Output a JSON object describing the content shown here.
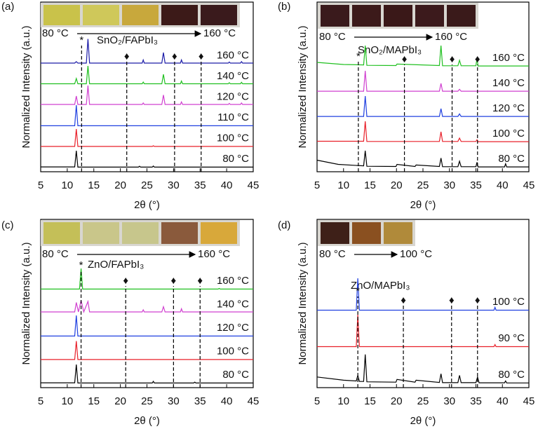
{
  "chart_data": [
    {
      "type": "line",
      "panel_label": "(a)",
      "title": "SnO₂/FAPbI₃",
      "photo_labels": [
        "80 °C",
        "160 °C"
      ],
      "sample_colors": [
        "#c9c24a",
        "#cfc85a",
        "#c8a83c",
        "#3c1a18",
        "#3a1a1c"
      ],
      "xlabel": "2θ (°)",
      "ylabel": "Normalized Intensity (a.u.)",
      "xlim": [
        5,
        45
      ],
      "xticks": [
        5,
        10,
        15,
        20,
        25,
        30,
        35,
        40,
        45
      ],
      "reference_lines": [
        {
          "x": 12.7,
          "marker": "*"
        },
        {
          "x": 21.2,
          "marker": "♦"
        },
        {
          "x": 30.2,
          "marker": "♦"
        },
        {
          "x": 35.2,
          "marker": "♦"
        }
      ],
      "series": [
        {
          "name": "80 °C",
          "color": "#000000",
          "x": [
            5,
            11.4,
            11.7,
            12.0,
            23.4,
            23.6,
            23.8,
            26.0,
            26.2,
            26.4,
            45
          ],
          "values": [
            0.03,
            0.03,
            0.8,
            0.02,
            0.02,
            0.06,
            0.02,
            0.02,
            0.07,
            0.02,
            0.02
          ]
        },
        {
          "name": "100 °C",
          "color": "#e8202a",
          "x": [
            5,
            11.4,
            11.7,
            12.0,
            26.0,
            26.2,
            26.4,
            45
          ],
          "values": [
            0.02,
            0.02,
            0.85,
            0.02,
            0.02,
            0.05,
            0.02,
            0.02
          ]
        },
        {
          "name": "110 °C",
          "color": "#2040e0",
          "x": [
            5,
            11.4,
            11.7,
            12.0,
            45
          ],
          "values": [
            0.02,
            0.02,
            1.0,
            0.02,
            0.02
          ]
        },
        {
          "name": "120 °C",
          "color": "#d040d0",
          "x": [
            5,
            11.4,
            11.7,
            12.0,
            13.6,
            13.9,
            14.2,
            24.1,
            24.3,
            24.5,
            27.8,
            28.1,
            28.4,
            31.3,
            31.5,
            31.7,
            40.3,
            40.5,
            40.7,
            42.6,
            42.8,
            43.0,
            45
          ],
          "values": [
            0.05,
            0.05,
            0.45,
            0.05,
            0.05,
            0.95,
            0.05,
            0.05,
            0.12,
            0.05,
            0.05,
            0.5,
            0.05,
            0.05,
            0.17,
            0.05,
            0.05,
            0.1,
            0.05,
            0.05,
            0.12,
            0.05,
            0.05
          ]
        },
        {
          "name": "140 °C",
          "color": "#20c020",
          "x": [
            5,
            11.4,
            11.7,
            12.0,
            13.6,
            13.9,
            14.2,
            24.1,
            24.3,
            24.5,
            27.8,
            28.1,
            28.4,
            31.3,
            31.5,
            31.7,
            40.3,
            40.5,
            40.7,
            42.6,
            42.8,
            43.0,
            45
          ],
          "values": [
            0.05,
            0.05,
            0.3,
            0.05,
            0.05,
            0.9,
            0.05,
            0.05,
            0.13,
            0.05,
            0.05,
            0.5,
            0.05,
            0.05,
            0.18,
            0.05,
            0.05,
            0.1,
            0.05,
            0.05,
            0.12,
            0.05,
            0.05
          ]
        },
        {
          "name": "160 °C",
          "color": "#1c1ca8",
          "x": [
            5,
            11.4,
            11.7,
            12.0,
            13.6,
            13.9,
            14.2,
            24.1,
            24.3,
            24.5,
            27.8,
            28.1,
            28.4,
            31.3,
            31.5,
            31.7,
            40.3,
            40.5,
            40.7,
            42.6,
            42.8,
            43.0,
            45
          ],
          "values": [
            0.05,
            0.05,
            0.12,
            0.05,
            0.05,
            1.2,
            0.05,
            0.05,
            0.2,
            0.05,
            0.05,
            0.55,
            0.05,
            0.05,
            0.2,
            0.05,
            0.05,
            0.1,
            0.05,
            0.05,
            0.12,
            0.05,
            0.05
          ]
        }
      ]
    },
    {
      "type": "line",
      "panel_label": "(b)",
      "title": "SnO₂/MAPbI₃",
      "photo_labels": [
        "80 °C",
        "160 °C"
      ],
      "sample_colors": [
        "#3a1a1c",
        "#3c1a1a",
        "#3a1818",
        "#3c1a1c",
        "#3a1a1a"
      ],
      "xlabel": "2θ (°)",
      "ylabel": "Normalized Intensity (a.u.)",
      "xlim": [
        5,
        45
      ],
      "xticks": [
        5,
        10,
        15,
        20,
        25,
        30,
        35,
        40,
        45
      ],
      "reference_lines": [
        {
          "x": 12.8,
          "marker": "*"
        },
        {
          "x": 21.5,
          "marker": "♦"
        },
        {
          "x": 30.5,
          "marker": "♦"
        },
        {
          "x": 35.3,
          "marker": "♦"
        }
      ],
      "series": [
        {
          "name": "80 °C",
          "color": "#000000",
          "x": [
            5,
            9,
            13.8,
            14.1,
            14.4,
            19.9,
            20.1,
            23.5,
            23.7,
            28.1,
            28.4,
            28.7,
            31.6,
            31.9,
            32.2,
            35.0,
            35.2,
            35.4,
            40.4,
            40.6,
            40.8,
            45
          ],
          "values": [
            0.35,
            0.15,
            0.08,
            0.8,
            0.06,
            0.05,
            0.15,
            0.05,
            0.12,
            0.05,
            0.45,
            0.04,
            0.04,
            0.3,
            0.04,
            0.04,
            0.25,
            0.03,
            0.03,
            0.18,
            0.03,
            0.03
          ]
        },
        {
          "name": "100 °C",
          "color": "#e8202a",
          "x": [
            5,
            13.8,
            14.1,
            14.4,
            28.1,
            28.4,
            28.7,
            31.6,
            31.9,
            32.2,
            35.0,
            35.2,
            35.4,
            45
          ],
          "values": [
            0.05,
            0.05,
            1.0,
            0.04,
            0.04,
            0.5,
            0.04,
            0.04,
            0.2,
            0.04,
            0.04,
            0.12,
            0.03,
            0.03
          ]
        },
        {
          "name": "120 °C",
          "color": "#2040e0",
          "x": [
            5,
            13.8,
            14.1,
            14.4,
            28.1,
            28.4,
            28.7,
            31.6,
            31.9,
            32.2,
            45
          ],
          "values": [
            0.03,
            0.03,
            1.0,
            0.03,
            0.03,
            0.4,
            0.03,
            0.03,
            0.15,
            0.03,
            0.03
          ]
        },
        {
          "name": "140 °C",
          "color": "#d040d0",
          "x": [
            5,
            13.8,
            14.1,
            14.4,
            28.1,
            28.4,
            28.7,
            31.6,
            31.9,
            32.2,
            45
          ],
          "values": [
            0.03,
            0.03,
            1.0,
            0.03,
            0.03,
            0.4,
            0.03,
            0.03,
            0.12,
            0.03,
            0.03
          ]
        },
        {
          "name": "160 °C",
          "color": "#20c020",
          "x": [
            5,
            10,
            13.8,
            14.1,
            14.4,
            19.9,
            20.1,
            28.1,
            28.4,
            28.7,
            31.6,
            31.9,
            32.2,
            35.0,
            35.2,
            35.4,
            45
          ],
          "values": [
            0.2,
            0.1,
            0.08,
            1.0,
            0.06,
            0.05,
            0.12,
            0.05,
            1.0,
            0.04,
            0.04,
            0.3,
            0.04,
            0.04,
            0.4,
            0.03,
            0.03
          ]
        }
      ]
    },
    {
      "type": "line",
      "panel_label": "(c)",
      "title": "ZnO/FAPbI₃",
      "photo_labels": [
        "80 °C",
        "160 °C"
      ],
      "sample_colors": [
        "#c4bf58",
        "#c9c68a",
        "#c7c68c",
        "#8a5a3c",
        "#d8a83a"
      ],
      "xlabel": "2θ (°)",
      "ylabel": "Normalized Intensity (a.u.)",
      "xlim": [
        5,
        45
      ],
      "xticks": [
        5,
        10,
        15,
        20,
        25,
        30,
        35,
        40,
        45
      ],
      "reference_lines": [
        {
          "x": 12.6,
          "marker": "*"
        },
        {
          "x": 21,
          "marker": "♦"
        },
        {
          "x": 30,
          "marker": "♦"
        },
        {
          "x": 35,
          "marker": "♦"
        }
      ],
      "series": [
        {
          "name": "80 °C",
          "color": "#000000",
          "x": [
            5,
            11.4,
            11.7,
            12.0,
            26.0,
            26.2,
            26.4,
            33.8,
            34.0,
            34.2,
            45
          ],
          "values": [
            0.03,
            0.03,
            0.9,
            0.02,
            0.02,
            0.1,
            0.02,
            0.02,
            0.06,
            0.02,
            0.02
          ]
        },
        {
          "name": "100 °C",
          "color": "#e8202a",
          "x": [
            5,
            11.4,
            11.7,
            12.0,
            45
          ],
          "values": [
            0.02,
            0.02,
            0.9,
            0.02,
            0.02
          ]
        },
        {
          "name": "120 °C",
          "color": "#2040e0",
          "x": [
            5,
            11.4,
            11.7,
            12.0,
            45
          ],
          "values": [
            0.02,
            0.02,
            1.0,
            0.02,
            0.02
          ]
        },
        {
          "name": "140 °C",
          "color": "#d040d0",
          "x": [
            5,
            11.4,
            11.7,
            12.1,
            12.6,
            13.1,
            13.9,
            14.2,
            24.1,
            24.3,
            24.5,
            27.8,
            28.1,
            28.4,
            31.3,
            31.5,
            31.7,
            45
          ],
          "values": [
            0.05,
            0.05,
            0.5,
            0.05,
            0.6,
            0.05,
            0.55,
            0.05,
            0.05,
            0.15,
            0.05,
            0.05,
            0.3,
            0.05,
            0.05,
            0.2,
            0.05,
            0.05
          ]
        },
        {
          "name": "160 °C",
          "color": "#20c020",
          "x": [
            5,
            12.3,
            12.6,
            12.9,
            38.4,
            38.6,
            38.8,
            45
          ],
          "values": [
            0.02,
            0.02,
            1.0,
            0.02,
            0.02,
            0.05,
            0.02,
            0.02
          ]
        }
      ]
    },
    {
      "type": "line",
      "panel_label": "(d)",
      "title": "ZnO/MAPbI₃",
      "photo_labels": [
        "80 °C",
        "100 °C"
      ],
      "sample_colors": [
        "#3e2018",
        "#8a5020",
        "#b08a3a"
      ],
      "xlabel": "2θ (°)",
      "ylabel": "Normalized Intensity (a.u.)",
      "xlim": [
        5,
        45
      ],
      "xticks": [
        5,
        10,
        15,
        20,
        25,
        30,
        35,
        40,
        45
      ],
      "reference_lines": [
        {
          "x": 12.7,
          "marker": "*"
        },
        {
          "x": 21.3,
          "marker": "♦"
        },
        {
          "x": 30.4,
          "marker": "♦"
        },
        {
          "x": 35.3,
          "marker": "♦"
        }
      ],
      "series": [
        {
          "name": "80 °C",
          "color": "#000000",
          "x": [
            5,
            10,
            12.4,
            12.7,
            13.0,
            13.8,
            14.1,
            14.4,
            19.9,
            20.1,
            23.5,
            23.7,
            28.1,
            28.4,
            28.7,
            31.6,
            31.9,
            32.2,
            35.0,
            35.3,
            35.6,
            40.4,
            40.6,
            40.8,
            45
          ],
          "values": [
            0.4,
            0.2,
            0.15,
            0.5,
            0.12,
            0.12,
            1.8,
            0.1,
            0.08,
            0.25,
            0.08,
            0.2,
            0.06,
            0.6,
            0.05,
            0.05,
            0.5,
            0.05,
            0.05,
            0.4,
            0.04,
            0.04,
            0.15,
            0.03,
            0.03
          ]
        },
        {
          "name": "90 °C",
          "color": "#e8202a",
          "x": [
            5,
            12.4,
            12.7,
            13.0,
            38.4,
            38.6,
            38.8,
            45
          ],
          "values": [
            0.02,
            0.02,
            2.0,
            0.02,
            0.02,
            0.15,
            0.02,
            0.02
          ]
        },
        {
          "name": "100 °C",
          "color": "#2040e0",
          "x": [
            5,
            12.4,
            12.7,
            13.0,
            38.4,
            38.6,
            38.8,
            45
          ],
          "values": [
            0.02,
            0.02,
            2.0,
            0.02,
            0.02,
            0.2,
            0.02,
            0.02
          ]
        }
      ]
    }
  ]
}
